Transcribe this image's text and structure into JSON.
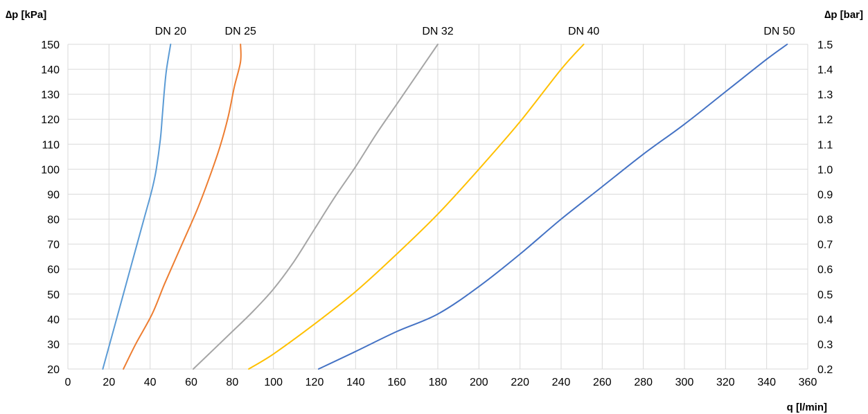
{
  "chart_data": {
    "type": "line",
    "y_left_label": "∆p [kPa]",
    "y_right_label": "∆p [bar]",
    "x_label": "q [l/min]",
    "xlim": [
      0,
      360
    ],
    "ylim": [
      20,
      150
    ],
    "y_right_lim": [
      0.2,
      1.5
    ],
    "x_ticks": [
      "0",
      "20",
      "40",
      "60",
      "80",
      "100",
      "120",
      "140",
      "160",
      "180",
      "200",
      "220",
      "240",
      "260",
      "280",
      "300",
      "320",
      "340",
      "360"
    ],
    "y_left_ticks": [
      "20",
      "30",
      "40",
      "50",
      "60",
      "70",
      "80",
      "90",
      "100",
      "110",
      "120",
      "130",
      "140",
      "150"
    ],
    "y_right_ticks": [
      "0.2",
      "0.3",
      "0.4",
      "0.5",
      "0.6",
      "0.7",
      "0.8",
      "0.9",
      "1.0",
      "1.1",
      "1.2",
      "1.3",
      "1.4",
      "1.5"
    ],
    "grid": true,
    "series": [
      {
        "name": "DN 20",
        "color": "#5B9BD5",
        "points": [
          [
            17,
            20
          ],
          [
            22,
            35
          ],
          [
            27,
            50
          ],
          [
            33,
            68
          ],
          [
            37,
            80
          ],
          [
            41,
            92
          ],
          [
            43,
            100
          ],
          [
            45,
            112
          ],
          [
            46,
            122
          ],
          [
            47,
            132
          ],
          [
            48,
            140
          ],
          [
            50,
            150
          ]
        ]
      },
      {
        "name": "DN 25",
        "color": "#ED7D31",
        "points": [
          [
            27,
            20
          ],
          [
            33,
            30
          ],
          [
            41,
            42
          ],
          [
            47,
            54
          ],
          [
            55,
            69
          ],
          [
            63,
            84
          ],
          [
            69,
            97
          ],
          [
            74,
            109
          ],
          [
            78,
            121
          ],
          [
            81,
            133
          ],
          [
            84,
            143
          ],
          [
            84,
            150
          ]
        ]
      },
      {
        "name": "DN 32",
        "color": "#A5A5A5",
        "points": [
          [
            61,
            20
          ],
          [
            80,
            35
          ],
          [
            90,
            43
          ],
          [
            100,
            52
          ],
          [
            110,
            63
          ],
          [
            120,
            76
          ],
          [
            130,
            89
          ],
          [
            140,
            101
          ],
          [
            150,
            114
          ],
          [
            160,
            126
          ],
          [
            170,
            138
          ],
          [
            180,
            150
          ]
        ]
      },
      {
        "name": "DN 40",
        "color": "#FFC000",
        "points": [
          [
            88,
            20
          ],
          [
            100,
            26
          ],
          [
            120,
            38
          ],
          [
            140,
            51
          ],
          [
            160,
            66
          ],
          [
            180,
            82
          ],
          [
            200,
            100
          ],
          [
            220,
            119
          ],
          [
            240,
            140
          ],
          [
            251,
            150
          ]
        ]
      },
      {
        "name": "DN 50",
        "color": "#4472C4",
        "points": [
          [
            122,
            20
          ],
          [
            140,
            27
          ],
          [
            160,
            35
          ],
          [
            180,
            42
          ],
          [
            200,
            53
          ],
          [
            220,
            66
          ],
          [
            240,
            80
          ],
          [
            260,
            93
          ],
          [
            280,
            106
          ],
          [
            300,
            118
          ],
          [
            320,
            131
          ],
          [
            340,
            144
          ],
          [
            350,
            150
          ]
        ]
      }
    ]
  }
}
